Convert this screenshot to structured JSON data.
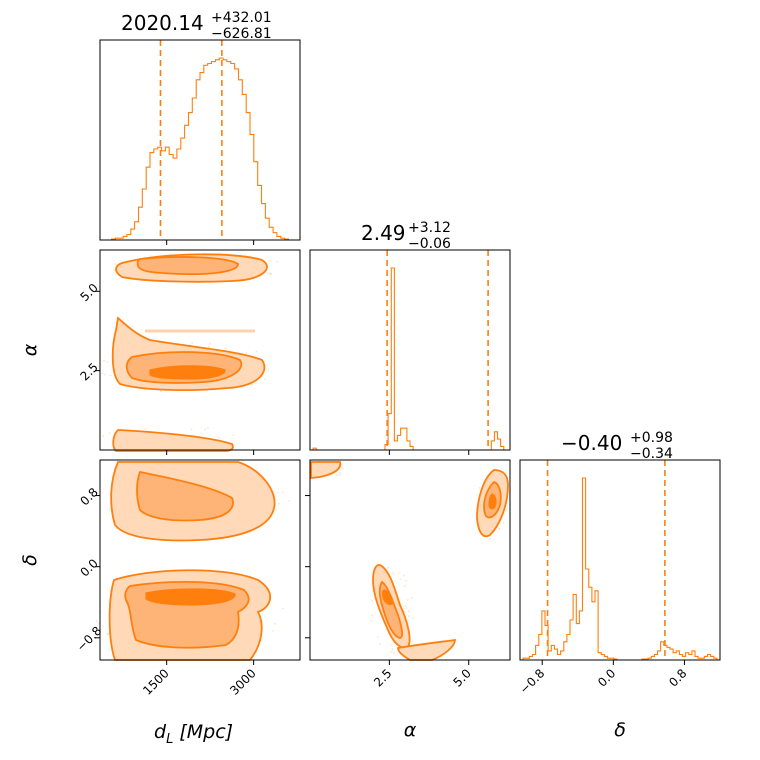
{
  "colors": {
    "series": "#ff7f0e",
    "level1": "#ffd9b8",
    "level2": "#ffb477",
    "level3": "#ff7f0e"
  },
  "chart_data": {
    "type": "corner",
    "parameters": [
      {
        "key": "dL",
        "label_main": "d",
        "label_sub": "L",
        "label_unit": " [Mpc]",
        "median": "2020.14",
        "plus": "+432.01",
        "minus": "−626.81",
        "range": [
          350,
          3800
        ],
        "ticks": [
          1500,
          3000
        ],
        "tick_labels": [
          "1500",
          "3000"
        ],
        "quantiles": [
          1393.33,
          2452.15
        ],
        "hist_bins": [
          0,
          0,
          0,
          0.5,
          1,
          1,
          2,
          3,
          6,
          10,
          18,
          28,
          40,
          48,
          50,
          51,
          49,
          51,
          47,
          45,
          50,
          56,
          63,
          70,
          78,
          88,
          92,
          96,
          97,
          98,
          99,
          100,
          99,
          98,
          97,
          94,
          88,
          80,
          70,
          58,
          43,
          30,
          20,
          12,
          7,
          4,
          2,
          1,
          0.5,
          0,
          0,
          0
        ]
      },
      {
        "key": "alpha",
        "label_main": "α",
        "median": "2.49",
        "plus": "+3.12",
        "minus": "−0.06",
        "range": [
          0,
          6.3
        ],
        "ticks": [
          2.5,
          5.0
        ],
        "tick_labels": [
          "2.5",
          "5.0"
        ],
        "quantiles": [
          2.43,
          5.61
        ],
        "hist_bins": [
          0,
          1,
          0,
          0,
          0,
          0,
          0,
          0,
          0,
          0,
          0,
          0,
          0,
          0,
          0,
          0,
          0,
          0,
          0,
          0,
          0,
          0,
          0,
          0,
          3,
          20,
          100,
          5,
          8,
          12,
          12,
          5,
          2,
          0,
          0,
          0,
          0,
          0,
          0,
          0,
          0,
          0,
          0,
          0,
          0,
          0,
          0,
          0,
          0,
          0,
          0,
          0,
          0,
          0,
          0,
          0,
          0,
          0,
          5,
          10,
          6,
          2,
          0,
          0
        ]
      },
      {
        "key": "delta",
        "label_main": "δ",
        "median": "−0.40",
        "plus": "+0.98",
        "minus": "−0.34",
        "range": [
          -1.05,
          1.2
        ],
        "ticks": [
          -0.8,
          0.0,
          0.8
        ],
        "tick_labels": [
          "−0.8",
          "0.0",
          "0.8"
        ],
        "quantiles": [
          -0.74,
          0.58
        ],
        "hist_bins": [
          0,
          1,
          1,
          2,
          3,
          8,
          14,
          27,
          19,
          5,
          8,
          6,
          3,
          5,
          10,
          14,
          22,
          36,
          20,
          27,
          100,
          50,
          40,
          32,
          38,
          4,
          3,
          2,
          1,
          1,
          0.5,
          0,
          0,
          0,
          0,
          0,
          0,
          0,
          0,
          0.5,
          0.5,
          1,
          2,
          3,
          5,
          10,
          8,
          7,
          6,
          4,
          5,
          3,
          2,
          4,
          3,
          5,
          2,
          1,
          1,
          2,
          3,
          2,
          1,
          0
        ]
      }
    ],
    "contour_levels": 3,
    "grid": false,
    "legend": "none"
  }
}
